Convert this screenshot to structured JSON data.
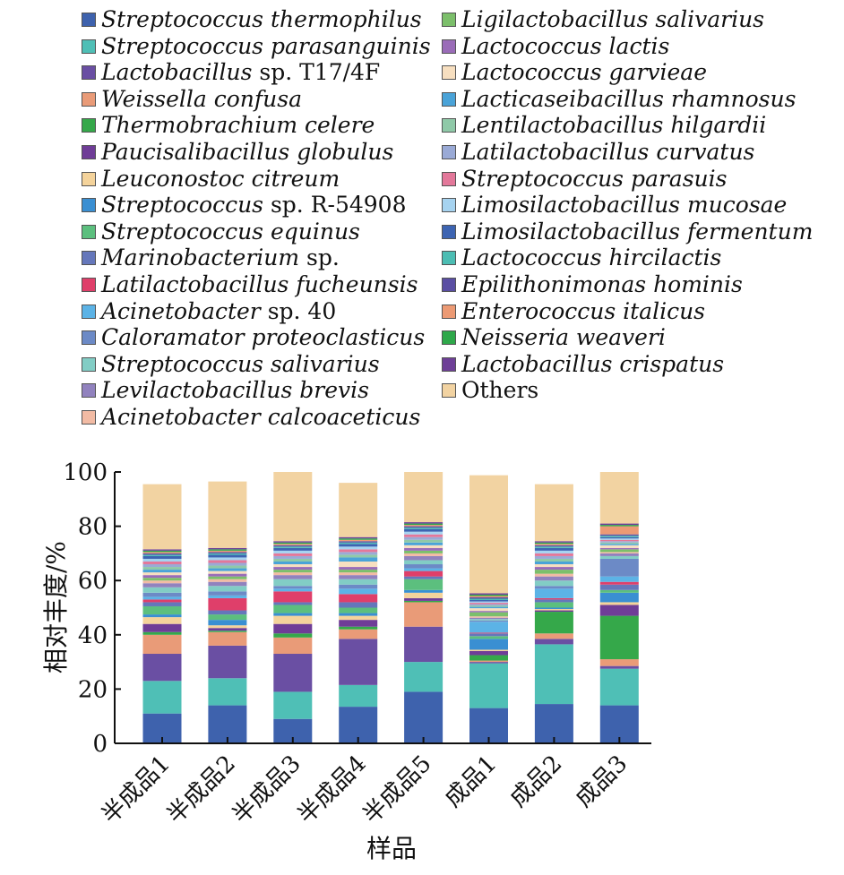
{
  "chart_data": {
    "type": "bar",
    "stacked": true,
    "ylabel": "相对丰度/%",
    "xlabel": "样品",
    "ylim": [
      0,
      100
    ],
    "yticks": [
      0,
      20,
      40,
      60,
      80,
      100
    ],
    "categories": [
      "半成品1",
      "半成品2",
      "半成品3",
      "半成品4",
      "半成品5",
      "成品1",
      "成品2",
      "成品3"
    ],
    "series": [
      {
        "name": "Streptococcus thermophilus",
        "name_parts": [
          [
            "Streptococcus thermophilus",
            true
          ]
        ],
        "color": "#3e62ad",
        "values": [
          11,
          14,
          9,
          13.5,
          19,
          13,
          14.5,
          14
        ]
      },
      {
        "name": "Streptococcus parasanguinis",
        "name_parts": [
          [
            "Streptococcus parasanguinis",
            true
          ]
        ],
        "color": "#4fbfb6",
        "values": [
          12,
          10,
          10,
          8,
          11,
          16.5,
          22,
          13.5
        ]
      },
      {
        "name": "Lactobacillus sp. T17/4F",
        "name_parts": [
          [
            "Lactobacillus",
            true
          ],
          [
            " sp. T17/4F",
            false
          ]
        ],
        "color": "#6a4fa3",
        "values": [
          10,
          12,
          14,
          17,
          13,
          0.5,
          2,
          1
        ]
      },
      {
        "name": "Weissella confusa",
        "name_parts": [
          [
            "Weissella confusa",
            true
          ]
        ],
        "color": "#e99b78",
        "values": [
          7,
          5,
          6,
          3.5,
          9,
          0.5,
          2,
          2.5
        ]
      },
      {
        "name": "Thermobrachium celere",
        "name_parts": [
          [
            "Thermobrachium celere",
            true
          ]
        ],
        "color": "#35a84a",
        "values": [
          1,
          0.5,
          1.5,
          1,
          0.5,
          2,
          8,
          16
        ]
      },
      {
        "name": "Paucisalibacillus globulus",
        "name_parts": [
          [
            "Paucisalibacillus globulus",
            true
          ]
        ],
        "color": "#6f3d97",
        "values": [
          3,
          1,
          3.5,
          2.5,
          1,
          1.5,
          0.5,
          4
        ]
      },
      {
        "name": "Leuconostoc citreum",
        "name_parts": [
          [
            "Leuconostoc citreum",
            true
          ]
        ],
        "color": "#f4d39b",
        "values": [
          2.5,
          1,
          3,
          1.5,
          2,
          0.5,
          0.5,
          1
        ]
      },
      {
        "name": "Streptococcus sp. R-54908",
        "name_parts": [
          [
            "Streptococcus",
            true
          ],
          [
            " sp. R-54908",
            false
          ]
        ],
        "color": "#3a8fd2",
        "values": [
          1,
          2,
          1,
          1,
          1,
          4,
          0.5,
          3.5
        ]
      },
      {
        "name": "Streptococcus equinus",
        "name_parts": [
          [
            "Streptococcus equinus",
            true
          ]
        ],
        "color": "#5cbf7e",
        "values": [
          3,
          2,
          3,
          2,
          4,
          1,
          2,
          1
        ]
      },
      {
        "name": "Marinobacterium sp.",
        "name_parts": [
          [
            "Marinobacterium",
            true
          ],
          [
            " sp.",
            false
          ]
        ],
        "color": "#6577bb",
        "values": [
          1.5,
          1.5,
          1,
          2,
          1,
          1,
          1,
          2
        ]
      },
      {
        "name": "Latilactobacillus fucheunsis",
        "name_parts": [
          [
            "Latilactobacillus fucheunsis",
            true
          ]
        ],
        "color": "#df3f6a",
        "values": [
          1,
          4.5,
          4,
          3,
          2,
          0.3,
          0.5,
          1
        ]
      },
      {
        "name": "Acinetobacter sp. 40",
        "name_parts": [
          [
            "Acinetobacter",
            true
          ],
          [
            " sp. 40",
            false
          ]
        ],
        "color": "#5cb3e6",
        "values": [
          1,
          1,
          1,
          2,
          1,
          4,
          3.5,
          2
        ]
      },
      {
        "name": "Caloramator proteoclasticus",
        "name_parts": [
          [
            "Caloramator proteoclasticus",
            true
          ]
        ],
        "color": "#6c8ac6",
        "values": [
          1.5,
          1.5,
          1,
          1.5,
          1.5,
          0.5,
          1,
          6.5
        ]
      },
      {
        "name": "Streptococcus salivarius",
        "name_parts": [
          [
            "Streptococcus salivarius",
            true
          ]
        ],
        "color": "#82cdc5",
        "values": [
          2,
          2,
          2.5,
          2,
          1.5,
          0.5,
          2,
          1
        ]
      },
      {
        "name": "Levilactobacillus brevis",
        "name_parts": [
          [
            "Levilactobacillus brevis",
            true
          ]
        ],
        "color": "#9182be",
        "values": [
          1.5,
          1.5,
          1.5,
          1.5,
          1.5,
          0.5,
          1.5,
          1
        ]
      },
      {
        "name": "Acinetobacter calcoaceticus",
        "name_parts": [
          [
            "Acinetobacter calcoaceticus",
            true
          ]
        ],
        "color": "#f2bba4",
        "values": [
          1,
          1,
          1,
          1,
          1,
          0.5,
          1,
          0.5
        ]
      },
      {
        "name": "Ligilactobacillus salivarius",
        "name_parts": [
          [
            "Ligilactobacillus salivarius",
            true
          ]
        ],
        "color": "#7cbf6b",
        "values": [
          1,
          1,
          1,
          1,
          1,
          1.5,
          1.5,
          1
        ]
      },
      {
        "name": "Lactococcus lactis",
        "name_parts": [
          [
            "Lactococcus lactis",
            true
          ]
        ],
        "color": "#9a6cb8",
        "values": [
          1,
          1,
          1,
          1,
          1,
          0.5,
          1,
          0.5
        ]
      },
      {
        "name": "Lactococcus garvieae",
        "name_parts": [
          [
            "Lactococcus garvieae",
            true
          ]
        ],
        "color": "#f7dfc0",
        "values": [
          1,
          1,
          1,
          2,
          1,
          1,
          1,
          1
        ]
      },
      {
        "name": "Lacticaseibacillus rhamnosus",
        "name_parts": [
          [
            "Lacticaseibacillus rhamnosus",
            true
          ]
        ],
        "color": "#4aa3d8",
        "values": [
          1,
          1,
          1,
          1.5,
          1,
          0.5,
          1,
          0.5
        ]
      },
      {
        "name": "Lentilactobacillus hilgardii",
        "name_parts": [
          [
            "Lentilactobacillus hilgardii",
            true
          ]
        ],
        "color": "#8fc9a8",
        "values": [
          1,
          1,
          1,
          1,
          1,
          0.5,
          1,
          0.5
        ]
      },
      {
        "name": "Latilactobacillus curvatus",
        "name_parts": [
          [
            "Latilactobacillus curvatus",
            true
          ]
        ],
        "color": "#9aaad6",
        "values": [
          1,
          1,
          1,
          1,
          1,
          0.5,
          1,
          0.5
        ]
      },
      {
        "name": "Streptococcus parasuis",
        "name_parts": [
          [
            "Streptococcus parasuis",
            true
          ]
        ],
        "color": "#e3789a",
        "values": [
          1,
          1,
          1,
          1,
          1,
          0.5,
          1,
          0.5
        ]
      },
      {
        "name": "Limosilactobacillus mucosae",
        "name_parts": [
          [
            "Limosilactobacillus mucosae",
            true
          ]
        ],
        "color": "#a6d3f0",
        "values": [
          1,
          1,
          1,
          1,
          1,
          0.5,
          1,
          0.5
        ]
      },
      {
        "name": "Limosilactobacillus fermentum",
        "name_parts": [
          [
            "Limosilactobacillus fermentum",
            true
          ]
        ],
        "color": "#3d64b2",
        "values": [
          1,
          1,
          1,
          1,
          1,
          0.5,
          1,
          0.5
        ]
      },
      {
        "name": "Lactococcus hircilactis",
        "name_parts": [
          [
            "Lactococcus hircilactis",
            true
          ]
        ],
        "color": "#4cbdb3",
        "values": [
          0.5,
          0.5,
          0.5,
          0.5,
          0.5,
          0.5,
          0.5,
          0.5
        ]
      },
      {
        "name": "Epilithonimonas hominis",
        "name_parts": [
          [
            "Epilithonimonas hominis",
            true
          ]
        ],
        "color": "#5a4ea3",
        "values": [
          0.5,
          0.5,
          0.5,
          0.5,
          0.5,
          0.5,
          0.5,
          0.5
        ]
      },
      {
        "name": "Enterococcus italicus",
        "name_parts": [
          [
            "Enterococcus italicus",
            true
          ]
        ],
        "color": "#ec9a74",
        "values": [
          0.5,
          0.5,
          0.5,
          0.5,
          0.5,
          0.5,
          0.5,
          3
        ]
      },
      {
        "name": "Neisseria weaveri",
        "name_parts": [
          [
            "Neisseria weaveri",
            true
          ]
        ],
        "color": "#2ea84a",
        "values": [
          0.5,
          0.5,
          0.5,
          0.5,
          0.5,
          0.5,
          0.5,
          0.5
        ]
      },
      {
        "name": "Lactobacillus crispatus",
        "name_parts": [
          [
            "Lactobacillus crispatus",
            true
          ]
        ],
        "color": "#6e3f97",
        "values": [
          0.5,
          0.5,
          0.5,
          0.5,
          0.5,
          0.5,
          0.5,
          0.5
        ]
      },
      {
        "name": "Others",
        "name_parts": [
          [
            "Others",
            false
          ]
        ],
        "color": "#f2d3a2",
        "values": [
          24,
          24.5,
          27,
          20,
          18.5,
          43.5,
          21,
          20
        ]
      }
    ],
    "legend_position": "top",
    "grid": false
  }
}
